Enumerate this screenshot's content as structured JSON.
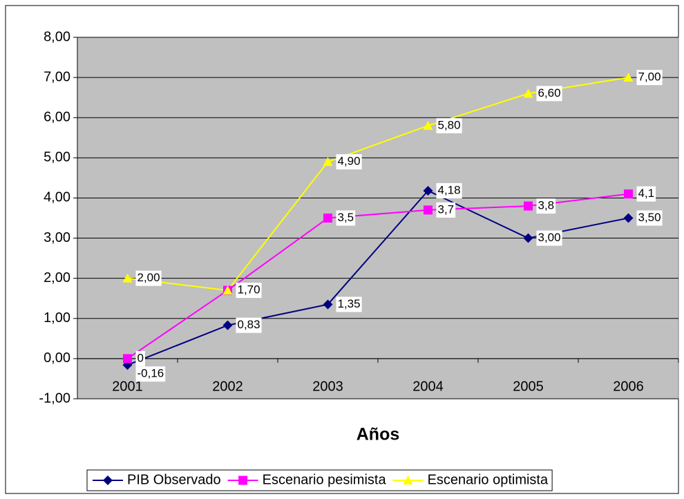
{
  "chart_data": {
    "type": "line",
    "x_label": "Años",
    "categories": [
      "2001",
      "2002",
      "2003",
      "2004",
      "2005",
      "2006"
    ],
    "series": [
      {
        "name": "PIB Observado",
        "color": "#000080",
        "marker": "diamond",
        "values": [
          -0.16,
          0.83,
          1.35,
          4.18,
          3.0,
          3.5
        ],
        "value_labels": [
          "-0,16",
          "0,83",
          "1,35",
          "4,18",
          "3,00",
          "3,50"
        ]
      },
      {
        "name": "Escenario pesimista",
        "color": "#ff00ff",
        "marker": "square",
        "values": [
          0,
          1.7,
          3.5,
          3.7,
          3.8,
          4.1
        ],
        "value_labels": [
          "0",
          null,
          "3,5",
          "3,7",
          "3,8",
          "4,1"
        ]
      },
      {
        "name": "Escenario optimista",
        "color": "#ffff00",
        "marker": "triangle",
        "values": [
          2.0,
          1.7,
          4.9,
          5.8,
          6.6,
          7.0
        ],
        "value_labels": [
          "2,00",
          "1,70",
          "4,90",
          "5,80",
          "6,60",
          "7,00"
        ]
      }
    ],
    "ylim": [
      -1,
      8
    ],
    "yticks": [
      {
        "value": -1,
        "label": "-1,00"
      },
      {
        "value": 0,
        "label": "0,00"
      },
      {
        "value": 1,
        "label": "1,00"
      },
      {
        "value": 2,
        "label": "2,00"
      },
      {
        "value": 3,
        "label": "3,00"
      },
      {
        "value": 4,
        "label": "4,00"
      },
      {
        "value": 5,
        "label": "5,00"
      },
      {
        "value": 6,
        "label": "6,00"
      },
      {
        "value": 7,
        "label": "7,00"
      },
      {
        "value": 8,
        "label": "8,00"
      }
    ],
    "grid": true,
    "legend": "bottom"
  }
}
